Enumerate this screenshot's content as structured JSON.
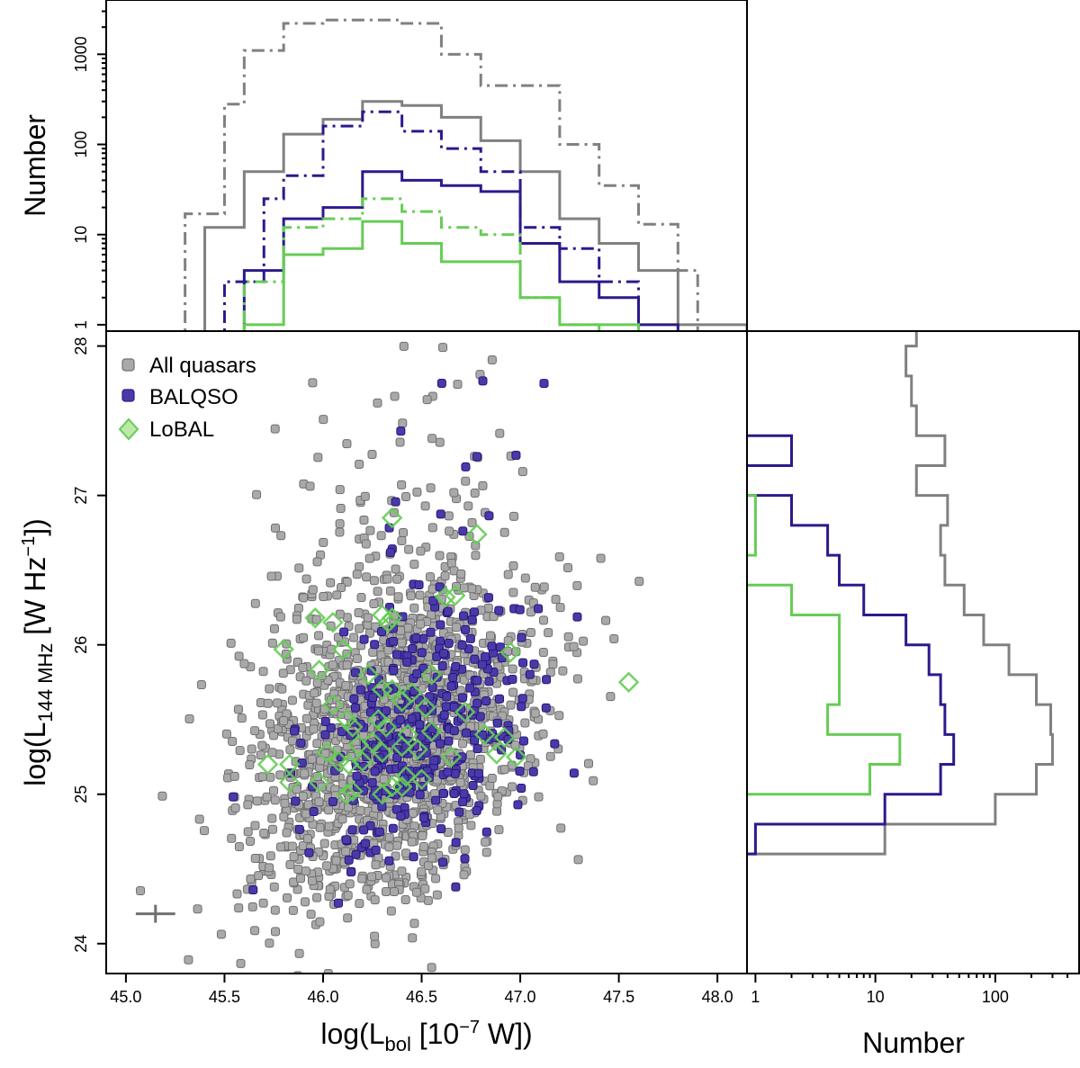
{
  "chart_data": [
    {
      "panel": "top-histogram",
      "type": "histogram",
      "yscale": "log",
      "ylabel": "Number",
      "xlim": [
        44.9,
        48.15
      ],
      "ylim": [
        0.85,
        4000
      ],
      "ytick_labels": [
        "1",
        "10",
        "100",
        "1000"
      ],
      "series": [
        {
          "color": "#808080",
          "linestyle": "dashdot",
          "edges": [
            45.3,
            45.5,
            45.6,
            45.8,
            46.0,
            46.2,
            46.4,
            46.6,
            46.8,
            47.0,
            47.2,
            47.4,
            47.6,
            47.8,
            47.9
          ],
          "counts": [
            17,
            280,
            1100,
            2200,
            2400,
            2400,
            2200,
            1000,
            450,
            450,
            100,
            35,
            13,
            4
          ]
        },
        {
          "color": "#808080",
          "linestyle": "solid",
          "edges": [
            45.4,
            45.6,
            45.8,
            46.0,
            46.2,
            46.4,
            46.6,
            46.8,
            47.0,
            47.2,
            47.4,
            47.6,
            47.8,
            48.0,
            48.15
          ],
          "counts": [
            12,
            50,
            130,
            190,
            300,
            270,
            200,
            110,
            50,
            15,
            8,
            4,
            1,
            1
          ]
        },
        {
          "color": "#2b1a8c",
          "linestyle": "dashdot",
          "edges": [
            45.5,
            45.7,
            45.8,
            46.0,
            46.2,
            46.4,
            46.6,
            46.8,
            47.0,
            47.2,
            47.4,
            47.6
          ],
          "counts": [
            3,
            25,
            45,
            160,
            230,
            140,
            90,
            50,
            12,
            7,
            3
          ]
        },
        {
          "color": "#2b1a8c",
          "linestyle": "solid",
          "edges": [
            45.6,
            45.8,
            46.0,
            46.2,
            46.4,
            46.6,
            46.8,
            47.0,
            47.2,
            47.4,
            47.6,
            47.8
          ],
          "counts": [
            4,
            15,
            20,
            50,
            40,
            35,
            30,
            8,
            3,
            2,
            1
          ]
        },
        {
          "color": "#66cc55",
          "linestyle": "dashdot",
          "edges": [
            45.6,
            45.8,
            46.0,
            46.2,
            46.4,
            46.6,
            46.8,
            47.0,
            47.2,
            47.4
          ],
          "counts": [
            3,
            12,
            15,
            25,
            18,
            12,
            10,
            2,
            1
          ]
        },
        {
          "color": "#66cc55",
          "linestyle": "solid",
          "edges": [
            45.6,
            45.8,
            46.0,
            46.2,
            46.4,
            46.6,
            46.8,
            47.0,
            47.2,
            47.4,
            47.6
          ],
          "counts": [
            1,
            6,
            7,
            14,
            8,
            5,
            5,
            2,
            1,
            1
          ]
        }
      ]
    },
    {
      "panel": "main-scatter",
      "type": "scatter",
      "xlabel": "log(L_bol [10^-7 W])",
      "ylabel": "log(L_144 MHz [W Hz^-1])",
      "xlim": [
        44.9,
        48.15
      ],
      "ylim": [
        23.8,
        28.1
      ],
      "xtick_labels": [
        "45.0",
        "45.5",
        "46.0",
        "46.5",
        "47.0",
        "47.5",
        "48.0"
      ],
      "ytick_labels": [
        "24",
        "25",
        "26",
        "27",
        "28"
      ],
      "legend_position": "top-left",
      "legend": [
        "All quasars",
        "BALQSO",
        "LoBAL"
      ],
      "error_bar": {
        "x": 45.15,
        "y": 24.2,
        "xerr": 0.1,
        "yerr": 0.06
      },
      "series": [
        {
          "name": "All quasars",
          "color": "#a9a9a9",
          "marker": "square",
          "n_points": 1700,
          "x_center": 46.35,
          "y_center": 25.35
        },
        {
          "name": "BALQSO",
          "color": "#4a3aa8",
          "marker": "square",
          "n_points": 360,
          "x_center": 46.5,
          "y_center": 25.4
        },
        {
          "name": "LoBAL",
          "color": "#66cc55",
          "marker": "diamond",
          "points": [
            [
              46.35,
              26.85
            ],
            [
              46.78,
              26.74
            ],
            [
              46.62,
              26.32
            ],
            [
              46.67,
              26.33
            ],
            [
              45.96,
              26.18
            ],
            [
              46.05,
              26.15
            ],
            [
              46.3,
              26.2
            ],
            [
              46.33,
              26.15
            ],
            [
              46.35,
              26.18
            ],
            [
              45.8,
              25.97
            ],
            [
              46.1,
              25.97
            ],
            [
              46.95,
              25.95
            ],
            [
              45.98,
              25.83
            ],
            [
              46.23,
              25.8
            ],
            [
              46.55,
              25.8
            ],
            [
              47.55,
              25.75
            ],
            [
              46.3,
              25.7
            ],
            [
              46.35,
              25.7
            ],
            [
              46.45,
              25.68
            ],
            [
              46.05,
              25.6
            ],
            [
              46.4,
              25.62
            ],
            [
              46.52,
              25.58
            ],
            [
              46.72,
              25.55
            ],
            [
              46.12,
              25.5
            ],
            [
              46.28,
              25.5
            ],
            [
              46.15,
              25.45
            ],
            [
              46.32,
              25.45
            ],
            [
              46.43,
              25.4
            ],
            [
              46.55,
              25.42
            ],
            [
              46.82,
              25.4
            ],
            [
              46.92,
              25.38
            ],
            [
              46.18,
              25.33
            ],
            [
              46.25,
              25.35
            ],
            [
              46.4,
              25.32
            ],
            [
              46.48,
              25.3
            ],
            [
              46.02,
              25.28
            ],
            [
              46.3,
              25.28
            ],
            [
              46.08,
              25.22
            ],
            [
              45.83,
              25.2
            ],
            [
              45.72,
              25.2
            ],
            [
              46.13,
              25.2
            ],
            [
              46.2,
              25.22
            ],
            [
              46.65,
              25.25
            ],
            [
              46.88,
              25.27
            ],
            [
              46.98,
              25.25
            ],
            [
              46.42,
              25.12
            ],
            [
              46.5,
              25.1
            ],
            [
              46.35,
              25.05
            ],
            [
              45.83,
              25.08
            ],
            [
              45.98,
              25.08
            ],
            [
              46.12,
              25.0
            ],
            [
              46.15,
              25.02
            ],
            [
              46.3,
              25.0
            ],
            [
              46.4,
              25.05
            ]
          ]
        }
      ]
    },
    {
      "panel": "right-histogram",
      "type": "histogram",
      "orientation": "horizontal",
      "xscale": "log",
      "xlabel": "Number",
      "xlim": [
        0.85,
        500
      ],
      "xtick_labels": [
        "1",
        "10",
        "100"
      ],
      "series": [
        {
          "color": "#808080",
          "linestyle": "solid",
          "edges": [
            24.6,
            24.8,
            25.0,
            25.2,
            25.4,
            25.6,
            25.8,
            26.0,
            26.2,
            26.4,
            26.6,
            26.8,
            27.0,
            27.2,
            27.4,
            27.6,
            27.8,
            28.0,
            28.2
          ],
          "counts": [
            12,
            100,
            220,
            300,
            290,
            220,
            130,
            80,
            55,
            38,
            35,
            40,
            22,
            38,
            22,
            20,
            18,
            22
          ]
        },
        {
          "color": "#2b1a8c",
          "linestyle": "solid",
          "edges": [
            24.6,
            24.8,
            25.0,
            25.2,
            25.4,
            25.6,
            25.8,
            26.0,
            26.2,
            26.4,
            26.6,
            26.8,
            27.0,
            27.2,
            27.4
          ],
          "counts": [
            1,
            12,
            35,
            45,
            38,
            35,
            28,
            18,
            8,
            5,
            4,
            2,
            0,
            2
          ]
        },
        {
          "color": "#66cc55",
          "linestyle": "solid",
          "edges": [
            25.0,
            25.2,
            25.4,
            25.6,
            25.8,
            26.0,
            26.2,
            26.4,
            26.6,
            26.8,
            27.0
          ],
          "counts": [
            9,
            16,
            4,
            5,
            5,
            5,
            2,
            0,
            1,
            1
          ]
        }
      ]
    }
  ]
}
